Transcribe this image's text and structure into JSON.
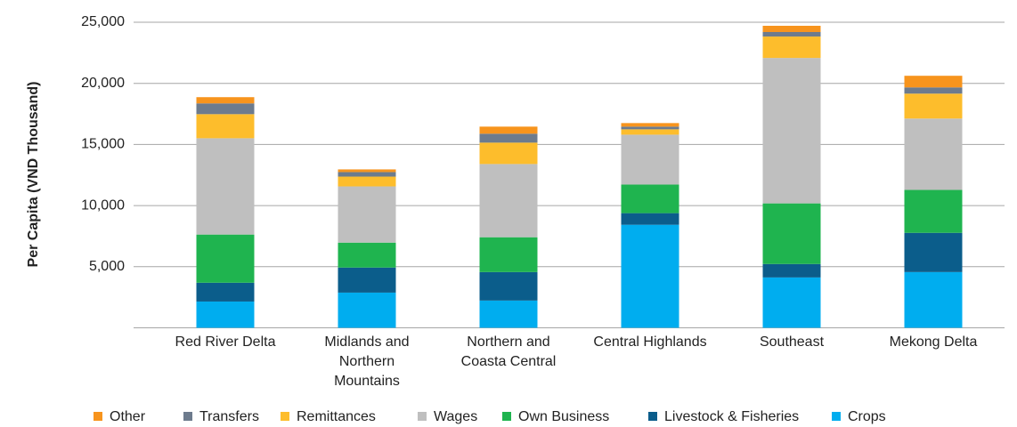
{
  "chart_data": {
    "type": "stacked_bar",
    "ylabel": "Per Capita (VND Thousand)",
    "categories": [
      "Red River Delta",
      "Midlands and Northern Mountains",
      "Northern and Coasta Central",
      "Central Highlands",
      "Southeast",
      "Mekong Delta"
    ],
    "series": [
      {
        "name": "Other",
        "color": "#f7941d",
        "values": [
          510,
          220,
          580,
          290,
          510,
          950
        ]
      },
      {
        "name": "Transfers",
        "color": "#6d7b8d",
        "values": [
          880,
          370,
          730,
          220,
          370,
          510
        ]
      },
      {
        "name": "Remittances",
        "color": "#fdbd2c",
        "values": [
          1970,
          800,
          1750,
          440,
          1750,
          2040
        ]
      },
      {
        "name": "Wages",
        "color": "#bfbfbf",
        "values": [
          7880,
          4600,
          5990,
          4080,
          11900,
          5840
        ]
      },
      {
        "name": "Own Business",
        "color": "#1fb44f",
        "values": [
          3940,
          2040,
          2850,
          2340,
          4960,
          3510
        ]
      },
      {
        "name": "Livestock & Fisheries",
        "color": "#0b5d8b",
        "values": [
          1540,
          2050,
          2330,
          950,
          1100,
          3210
        ]
      },
      {
        "name": "Crops",
        "color": "#00adef",
        "values": [
          2150,
          2880,
          2230,
          8430,
          4120,
          4560
        ]
      }
    ],
    "ylim": [
      0,
      25000
    ],
    "yticks": [
      {
        "value": 5000,
        "label": "5,000"
      },
      {
        "value": 10000,
        "label": "10,000"
      },
      {
        "value": 15000,
        "label": "15,000"
      },
      {
        "value": 20000,
        "label": "20,000"
      },
      {
        "value": 25000,
        "label": "25,000"
      }
    ],
    "grid": true,
    "legend": "bottom"
  }
}
